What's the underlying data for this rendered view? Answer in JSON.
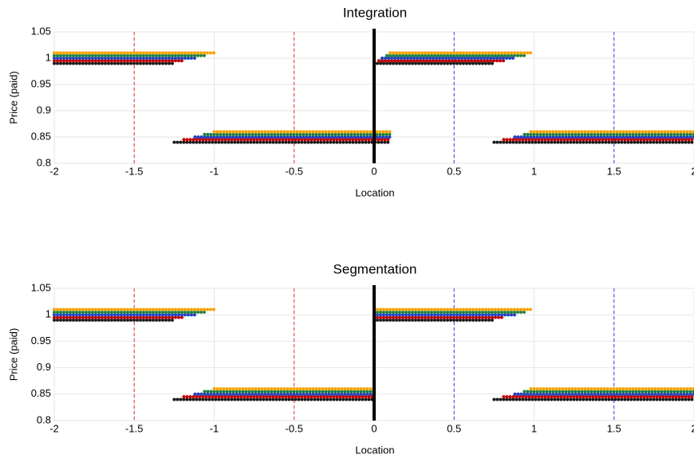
{
  "chart_data": [
    {
      "type": "line",
      "title": "Integration",
      "x_label": "Location",
      "y_label": "Price (paid)",
      "xlim": [
        -2,
        2
      ],
      "ylim": [
        0.8,
        1.05
      ],
      "xticks": [
        -2,
        -1.5,
        -1,
        -0.5,
        0,
        0.5,
        1,
        1.5,
        2
      ],
      "yticks": [
        0.8,
        0.85,
        0.9,
        0.95,
        1,
        1.05
      ],
      "grid": true,
      "vlines": [
        {
          "x": -1.5,
          "color": "#e8302a",
          "style": "dashed"
        },
        {
          "x": -0.5,
          "color": "#e8302a",
          "style": "dashed"
        },
        {
          "x": 0.5,
          "color": "#3a3ae8",
          "style": "dashed"
        },
        {
          "x": 1.5,
          "color": "#3a3ae8",
          "style": "dashed"
        },
        {
          "x": 0,
          "color": "#000000",
          "style": "solid"
        }
      ],
      "series": [
        {
          "color": "#1a1a1a",
          "x": [
            -2,
            -1.25,
            null,
            -1.25,
            0.1,
            null,
            0,
            0.75,
            null,
            0.75,
            2
          ],
          "values": [
            0.99,
            0.99,
            null,
            0.84,
            0.84,
            null,
            0.99,
            0.99,
            null,
            0.84,
            0.84
          ]
        },
        {
          "color": "#c00000",
          "x": [
            -2,
            -1.19,
            null,
            -1.19,
            0.1,
            null,
            0.03,
            0.81,
            null,
            0.81,
            2
          ],
          "values": [
            0.995,
            0.995,
            null,
            0.845,
            0.845,
            null,
            0.995,
            0.995,
            null,
            0.845,
            0.845
          ]
        },
        {
          "color": "#2040c0",
          "x": [
            -2,
            -1.12,
            null,
            -1.12,
            0.1,
            null,
            0.05,
            0.88,
            null,
            0.88,
            2
          ],
          "values": [
            1,
            1,
            null,
            0.85,
            0.85,
            null,
            1,
            1,
            null,
            0.85,
            0.85
          ]
        },
        {
          "color": "#208040",
          "x": [
            -2,
            -1.06,
            null,
            -1.06,
            0.1,
            null,
            0.08,
            0.94,
            null,
            0.94,
            2
          ],
          "values": [
            1.005,
            1.005,
            null,
            0.855,
            0.855,
            null,
            1.005,
            1.005,
            null,
            0.855,
            0.855
          ]
        },
        {
          "color": "#f5a300",
          "x": [
            -2,
            -1,
            null,
            -1,
            0.1,
            null,
            0.1,
            0.98,
            null,
            0.98,
            2
          ],
          "values": [
            1.01,
            1.01,
            null,
            0.86,
            0.86,
            null,
            1.01,
            1.01,
            null,
            0.86,
            0.86
          ]
        }
      ]
    },
    {
      "type": "line",
      "title": "Segmentation",
      "x_label": "Location",
      "y_label": "Price (paid)",
      "xlim": [
        -2,
        2
      ],
      "ylim": [
        0.8,
        1.05
      ],
      "xticks": [
        -2,
        -1.5,
        -1,
        -0.5,
        0,
        0.5,
        1,
        1.5,
        2
      ],
      "yticks": [
        0.8,
        0.85,
        0.9,
        0.95,
        1,
        1.05
      ],
      "grid": true,
      "vlines": [
        {
          "x": -1.5,
          "color": "#e8302a",
          "style": "dashed"
        },
        {
          "x": -0.5,
          "color": "#e8302a",
          "style": "dashed"
        },
        {
          "x": 0.5,
          "color": "#3a3ae8",
          "style": "dashed"
        },
        {
          "x": 1.5,
          "color": "#3a3ae8",
          "style": "dashed"
        },
        {
          "x": 0,
          "color": "#000000",
          "style": "solid"
        }
      ],
      "series": [
        {
          "color": "#1a1a1a",
          "x": [
            -2,
            -1.25,
            null,
            -1.25,
            0,
            null,
            0,
            0.75,
            null,
            0.75,
            2
          ],
          "values": [
            0.99,
            0.99,
            null,
            0.84,
            0.84,
            null,
            0.99,
            0.99,
            null,
            0.84,
            0.84
          ]
        },
        {
          "color": "#c00000",
          "x": [
            -2,
            -1.19,
            null,
            -1.19,
            0,
            null,
            0,
            0.81,
            null,
            0.81,
            2
          ],
          "values": [
            0.995,
            0.995,
            null,
            0.845,
            0.845,
            null,
            0.995,
            0.995,
            null,
            0.845,
            0.845
          ]
        },
        {
          "color": "#2040c0",
          "x": [
            -2,
            -1.12,
            null,
            -1.12,
            0,
            null,
            0,
            0.88,
            null,
            0.88,
            2
          ],
          "values": [
            1,
            1,
            null,
            0.85,
            0.85,
            null,
            1,
            1,
            null,
            0.85,
            0.85
          ]
        },
        {
          "color": "#208040",
          "x": [
            -2,
            -1.06,
            null,
            -1.06,
            0,
            null,
            0,
            0.94,
            null,
            0.94,
            2
          ],
          "values": [
            1.005,
            1.005,
            null,
            0.855,
            0.855,
            null,
            1.005,
            1.005,
            null,
            0.855,
            0.855
          ]
        },
        {
          "color": "#f5a300",
          "x": [
            -2,
            -1,
            null,
            -1,
            0,
            null,
            0,
            0.98,
            null,
            0.98,
            2
          ],
          "values": [
            1.01,
            1.01,
            null,
            0.86,
            0.86,
            null,
            1.01,
            1.01,
            null,
            0.86,
            0.86
          ]
        }
      ]
    }
  ]
}
